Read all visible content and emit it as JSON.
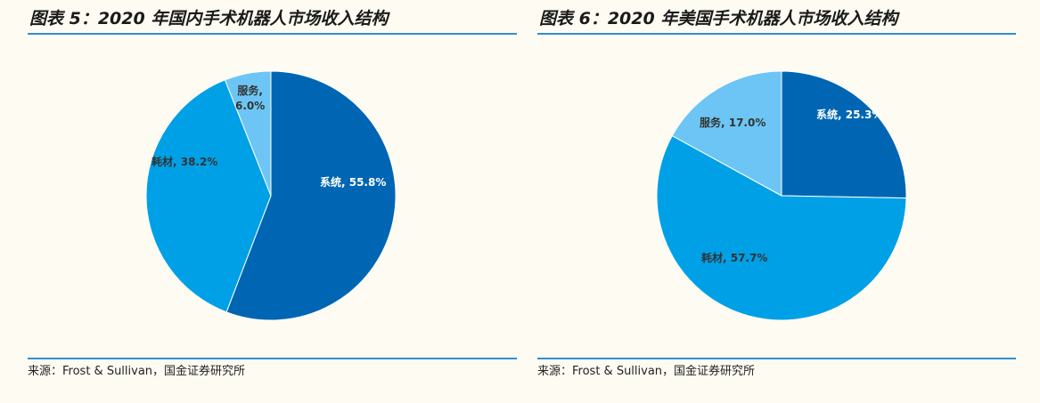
{
  "chart_data": [
    {
      "type": "pie",
      "title": "图表 5：2020 年国内手术机器人市场收入结构",
      "source": "来源：Frost & Sullivan，国金证券研究所",
      "slices": [
        {
          "name": "系统",
          "value": 55.8,
          "label": "系统, 55.8%",
          "color": "#0066b3"
        },
        {
          "name": "耗材",
          "value": 38.2,
          "label": "耗材, 38.2%",
          "color": "#00a0e6"
        },
        {
          "name": "服务",
          "value": 6.0,
          "label_lines": [
            "服务,",
            "6.0%"
          ],
          "color": "#6cc5f5"
        }
      ]
    },
    {
      "type": "pie",
      "title": "图表 6：2020 年美国手术机器人市场收入结构",
      "source": "来源：Frost & Sullivan，国金证券研究所",
      "slices": [
        {
          "name": "系统",
          "value": 25.3,
          "label": "系统, 25.3%",
          "color": "#0066b3"
        },
        {
          "name": "耗材",
          "value": 57.7,
          "label": "耗材, 57.7%",
          "color": "#00a0e6"
        },
        {
          "name": "服务",
          "value": 17.0,
          "label": "服务, 17.0%",
          "color": "#6cc5f5"
        }
      ]
    }
  ]
}
